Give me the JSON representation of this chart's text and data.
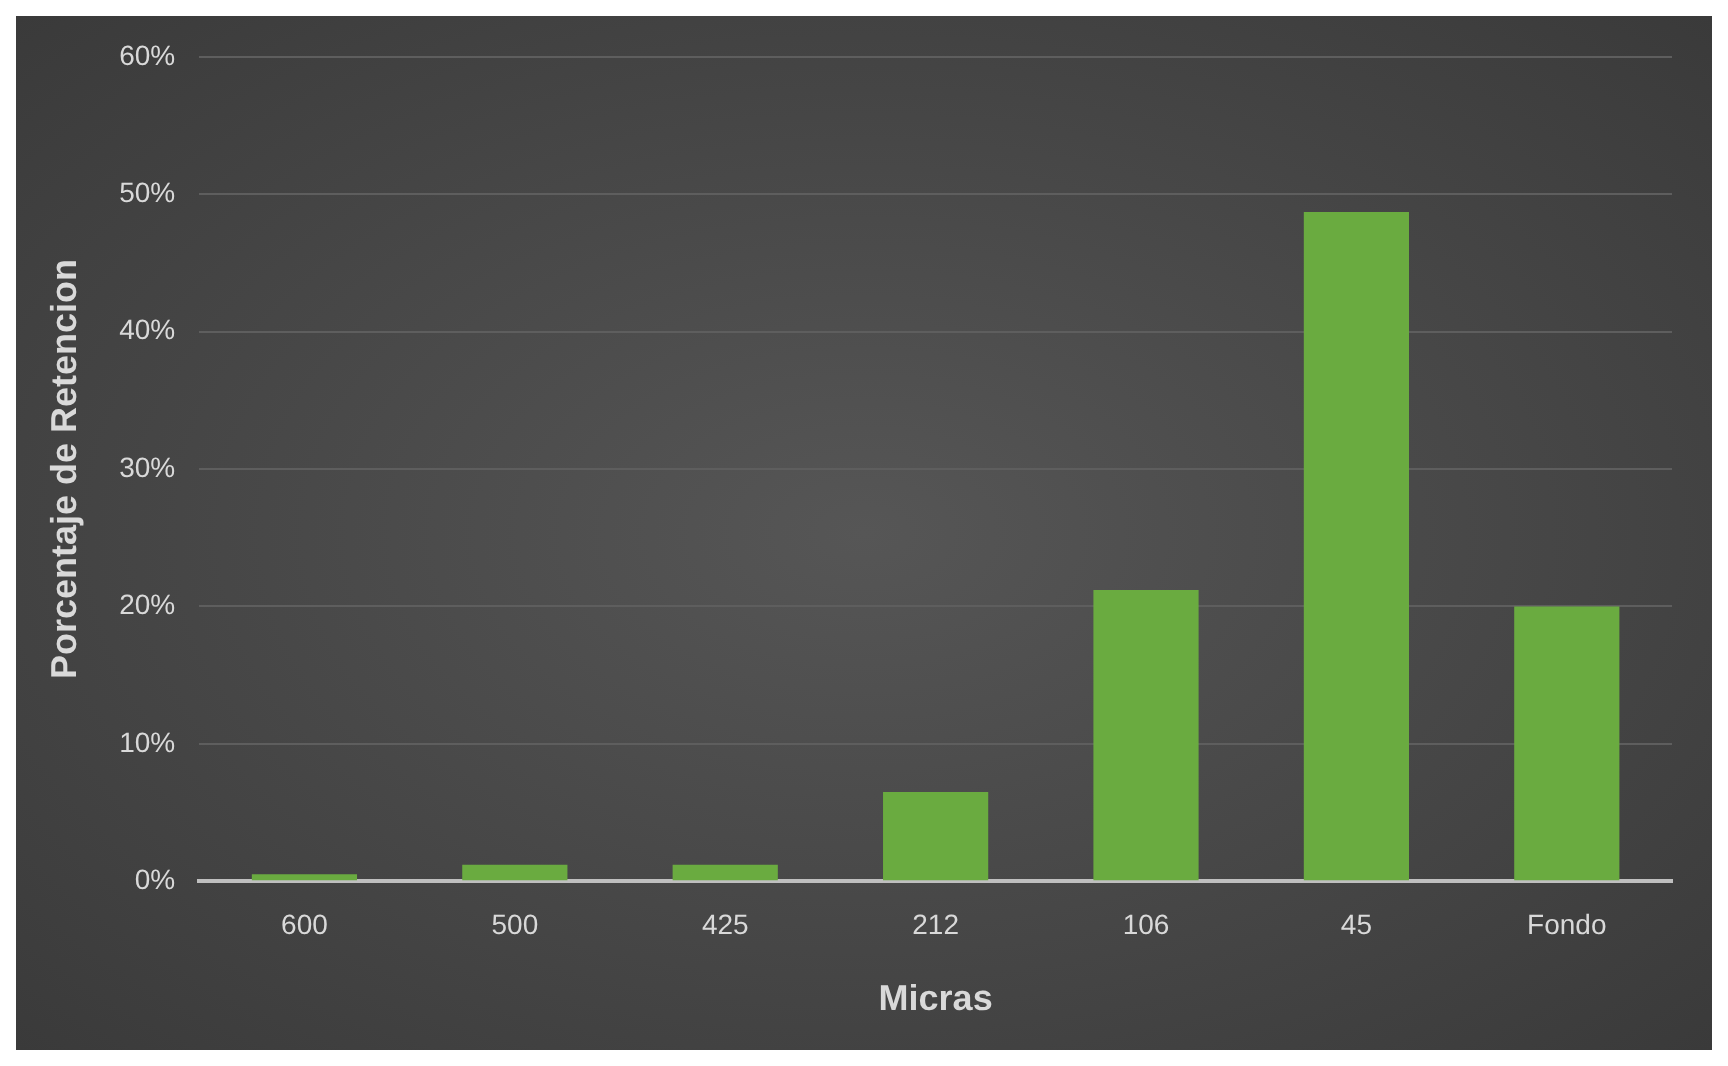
{
  "chart_data": {
    "type": "bar",
    "xlabel": "Micras",
    "ylabel": "Porcentaje de Retencion",
    "categories": [
      "600",
      "500",
      "425",
      "212",
      "106",
      "45",
      "Fondo"
    ],
    "values": [
      0.5,
      1.2,
      1.2,
      6.5,
      21.2,
      48.7,
      20.0
    ],
    "color": "#6aab40",
    "ylim": [
      0,
      60
    ],
    "yticks": [
      {
        "value": 0,
        "label": "0%"
      },
      {
        "value": 10,
        "label": "10%"
      },
      {
        "value": 20,
        "label": "20%"
      },
      {
        "value": 30,
        "label": "30%"
      },
      {
        "value": 40,
        "label": "40%"
      },
      {
        "value": 50,
        "label": "50%"
      },
      {
        "value": 60,
        "label": "60%"
      }
    ],
    "grid": "y",
    "legend": false
  }
}
